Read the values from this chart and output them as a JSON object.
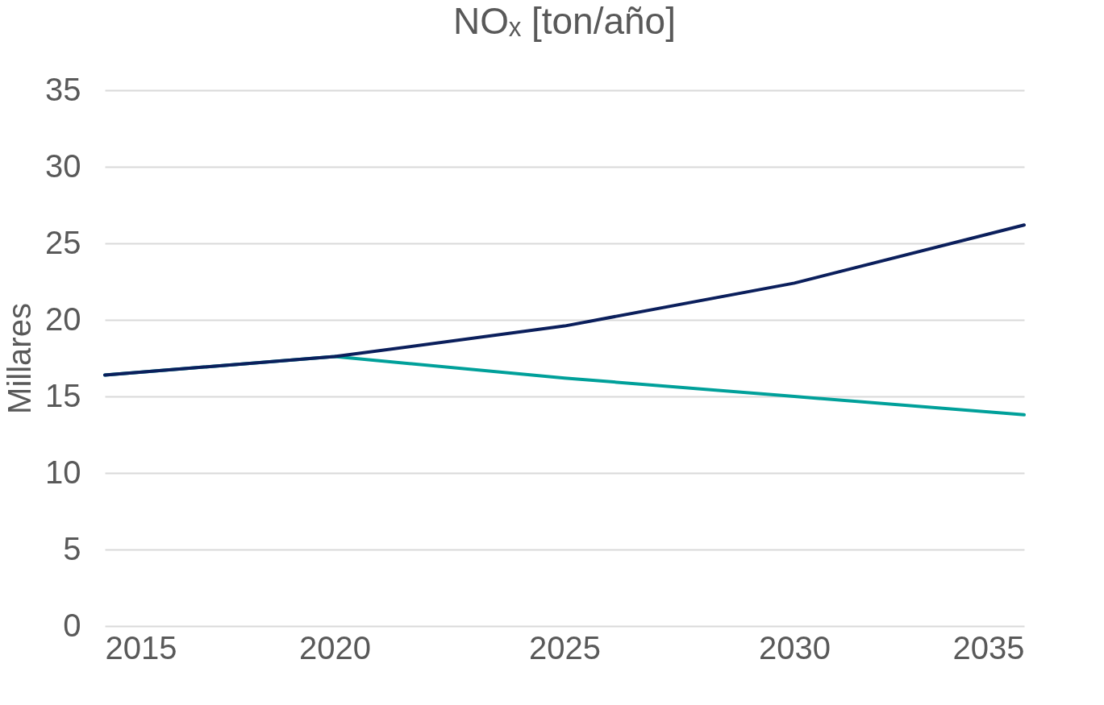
{
  "chart_data": {
    "type": "line",
    "title": "NOₓ [ton/año]",
    "ylabel": "Millares",
    "x": [
      2015,
      2020,
      2025,
      2030,
      2035
    ],
    "series": [
      {
        "color": "#00a09a",
        "values": [
          16.4,
          17.6,
          16.2,
          15.0,
          13.8
        ]
      },
      {
        "color": "#0b1f5c",
        "values": [
          16.4,
          17.6,
          19.6,
          22.4,
          26.2
        ]
      }
    ],
    "xlim": [
      2015,
      2035
    ],
    "xticks": [
      2015,
      2020,
      2025,
      2030,
      2035
    ],
    "ylim": [
      0,
      35
    ],
    "yticks": [
      0,
      5,
      10,
      15,
      20,
      25,
      30,
      35
    ],
    "grid": "y",
    "legend": false,
    "marker": "none",
    "line_style": "solid"
  }
}
